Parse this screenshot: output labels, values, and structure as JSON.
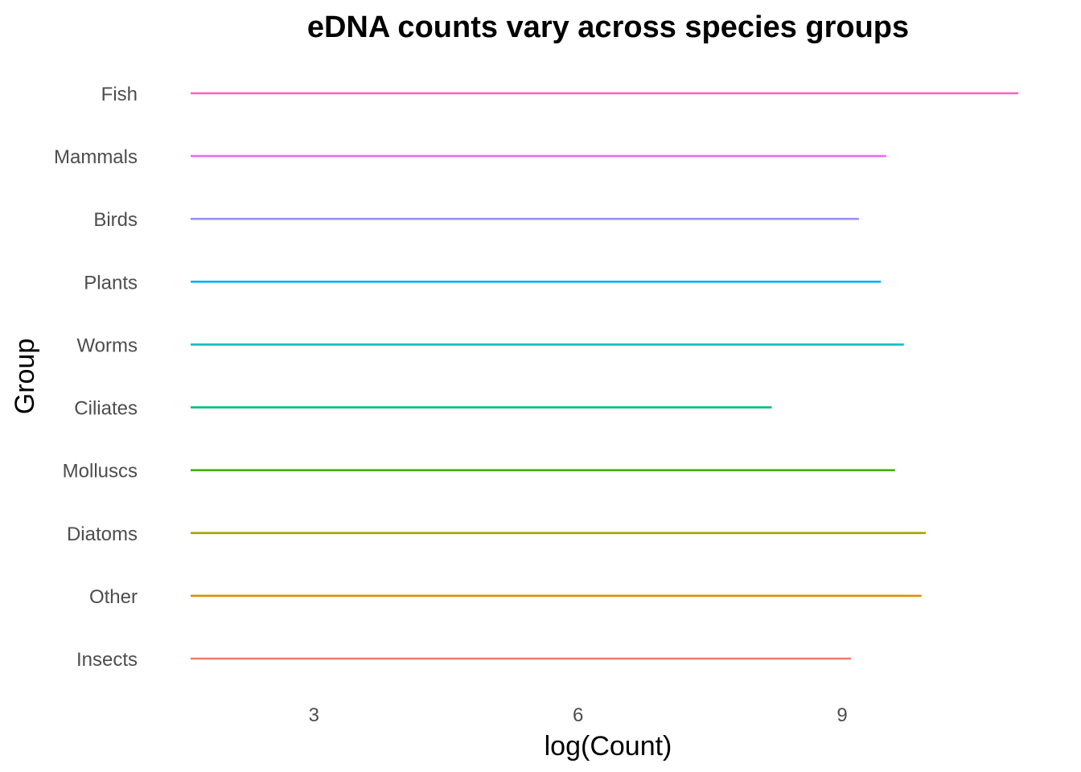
{
  "chart_data": {
    "type": "line",
    "title": "eDNA counts vary across species groups",
    "xlabel": "log(Count)",
    "ylabel": "Group",
    "x_ticks": [
      3,
      6,
      9
    ],
    "xlim": [
      1.6,
      11.1
    ],
    "grid": false,
    "legend": "none",
    "categories": [
      "Insects",
      "Other",
      "Diatoms",
      "Molluscs",
      "Ciliates",
      "Worms",
      "Plants",
      "Birds",
      "Mammals",
      "Fish"
    ],
    "series": [
      {
        "category": "Insects",
        "x_start": 1.6,
        "x_end": 9.1,
        "color": "#f8766d"
      },
      {
        "category": "Other",
        "x_start": 1.6,
        "x_end": 9.9,
        "color": "#d89000"
      },
      {
        "category": "Diatoms",
        "x_start": 1.6,
        "x_end": 9.95,
        "color": "#a3a500"
      },
      {
        "category": "Molluscs",
        "x_start": 1.6,
        "x_end": 9.6,
        "color": "#39b600"
      },
      {
        "category": "Ciliates",
        "x_start": 1.6,
        "x_end": 8.2,
        "color": "#00bf7d"
      },
      {
        "category": "Worms",
        "x_start": 1.6,
        "x_end": 9.7,
        "color": "#00bfc4"
      },
      {
        "category": "Plants",
        "x_start": 1.6,
        "x_end": 9.44,
        "color": "#00b0f6"
      },
      {
        "category": "Birds",
        "x_start": 1.6,
        "x_end": 9.19,
        "color": "#9590ff"
      },
      {
        "category": "Mammals",
        "x_start": 1.6,
        "x_end": 9.5,
        "color": "#e76bf3"
      },
      {
        "category": "Fish",
        "x_start": 1.6,
        "x_end": 11.0,
        "color": "#ff62bc"
      }
    ]
  }
}
